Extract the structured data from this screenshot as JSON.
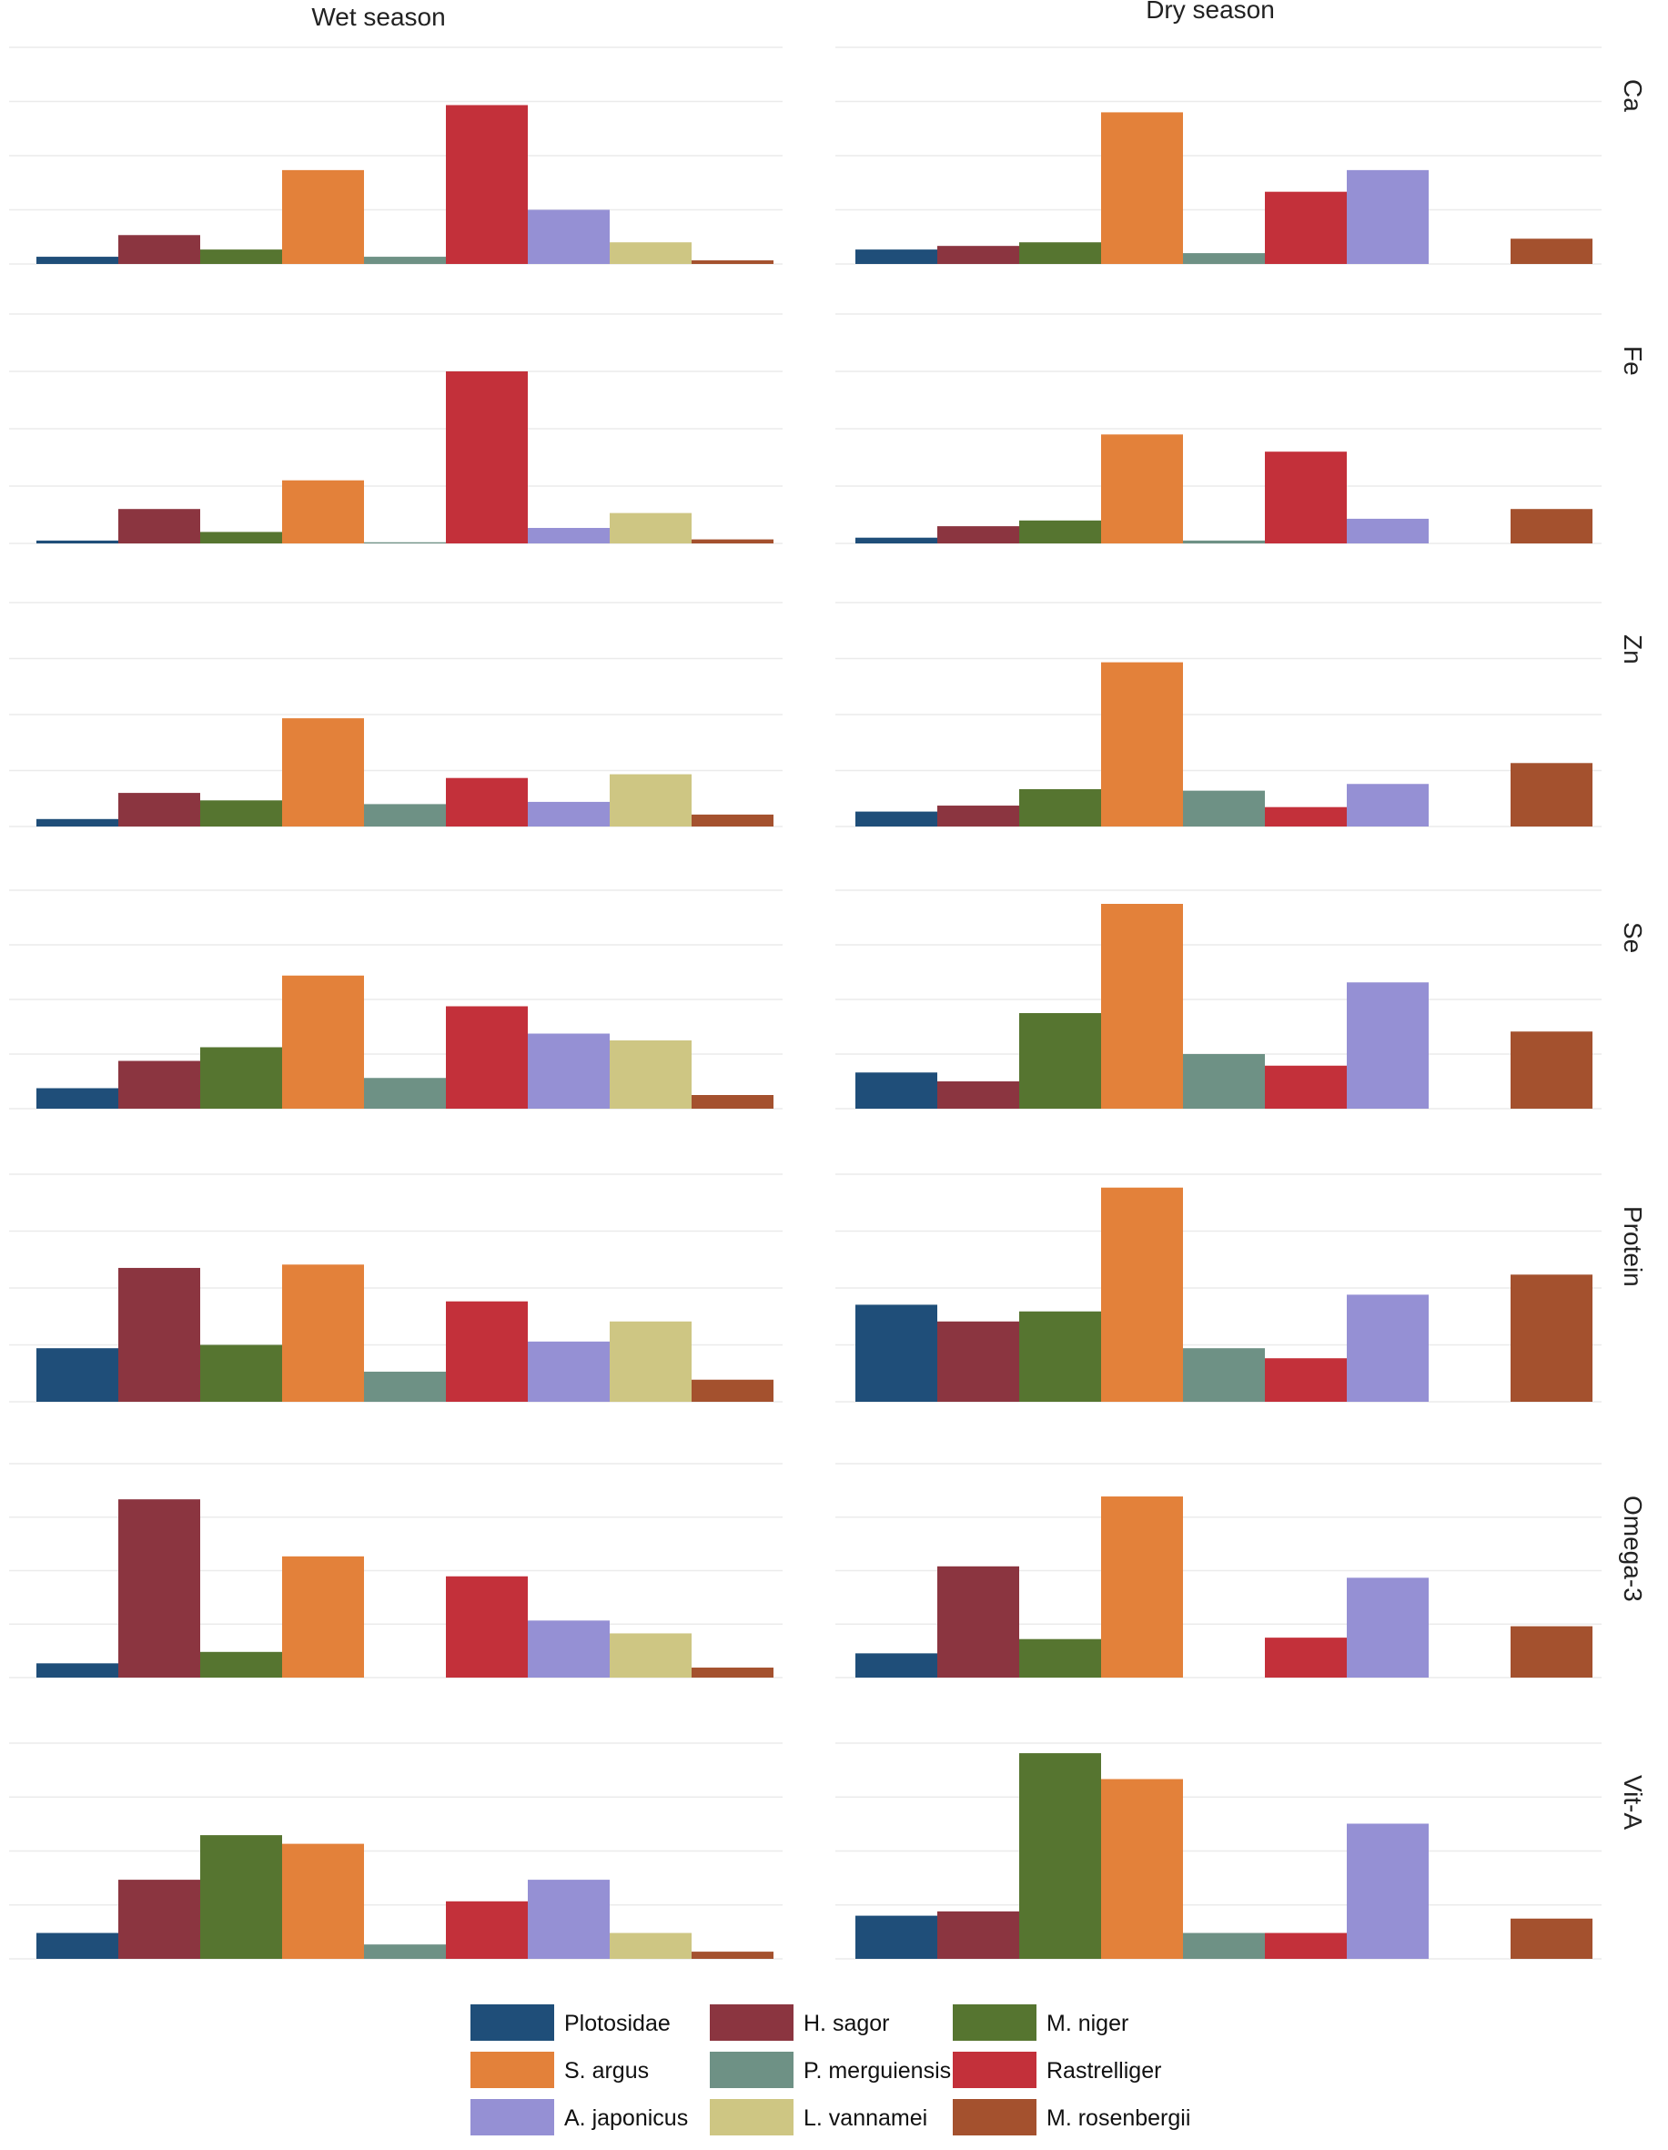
{
  "chart_data": {
    "type": "bar",
    "layout": "faceted-grid",
    "columns": [
      "Wet season",
      "Dry season"
    ],
    "rows": [
      "Ca",
      "Fe",
      "Zn",
      "Se",
      "Protein",
      "Omega-3",
      "Vit-A"
    ],
    "categories": [
      "Plotosidae",
      "H. sagor",
      "M. niger",
      "S. argus",
      "P. merguiensis",
      "Rastrelliger",
      "A. japonicus",
      "L. vannamei",
      "M. rosenbergii"
    ],
    "colors": [
      "#1f4e79",
      "#8b3540",
      "#567530",
      "#e3813a",
      "#6e9185",
      "#c3303a",
      "#9590d4",
      "#cec683",
      "#a4512e"
    ],
    "value_scale": "relative (no tick labels printed)",
    "grid": true,
    "legend_position": "bottom",
    "panels": [
      {
        "row": "Ca",
        "wet": [
          1,
          4,
          2,
          13,
          1,
          22,
          7.5,
          3,
          0.5
        ],
        "dry": [
          2,
          2.5,
          3,
          21,
          1.5,
          10,
          13,
          null,
          3.5
        ],
        "ymax": 30
      },
      {
        "row": "Fe",
        "wet": [
          0.5,
          6,
          2,
          11,
          0.2,
          30,
          2.7,
          5.3,
          0.7
        ],
        "dry": [
          1,
          3,
          4,
          19,
          0.5,
          16,
          4.3,
          null,
          6
        ],
        "ymax": 40
      },
      {
        "row": "Zn",
        "wet": [
          1,
          4.5,
          3.5,
          14.5,
          3,
          6.5,
          3.3,
          7,
          1.6
        ],
        "dry": [
          2,
          2.8,
          5,
          22,
          4.8,
          2.6,
          5.7,
          null,
          8.5
        ],
        "ymax": 30
      },
      {
        "row": "Se",
        "wet": [
          3,
          7,
          9,
          19.5,
          4.5,
          15,
          11,
          10,
          2
        ],
        "dry": [
          5.3,
          4,
          14,
          30,
          8,
          6.3,
          18.5,
          null,
          11.3
        ],
        "ymax": 32
      },
      {
        "row": "Protein",
        "wet": [
          8,
          20,
          8.5,
          20.5,
          4.5,
          15,
          9,
          12,
          3.3
        ],
        "dry": [
          14.5,
          12,
          13.5,
          32,
          8,
          6.5,
          16,
          null,
          19
        ],
        "ymax": 34
      },
      {
        "row": "Omega-3",
        "wet": [
          1,
          12.5,
          1.8,
          8.5,
          null,
          7.1,
          4,
          3.1,
          0.7
        ],
        "dry": [
          1.7,
          7.8,
          2.7,
          12.7,
          null,
          2.8,
          7,
          null,
          3.6
        ],
        "ymax": 15
      },
      {
        "row": "Vit-A",
        "wet": [
          1.8,
          5.5,
          8.6,
          8,
          1,
          4,
          5.5,
          1.8,
          0.5
        ],
        "dry": [
          3,
          3.3,
          14.3,
          12.5,
          1.8,
          1.8,
          9.4,
          null,
          2.8
        ],
        "ymax": 15
      }
    ]
  }
}
